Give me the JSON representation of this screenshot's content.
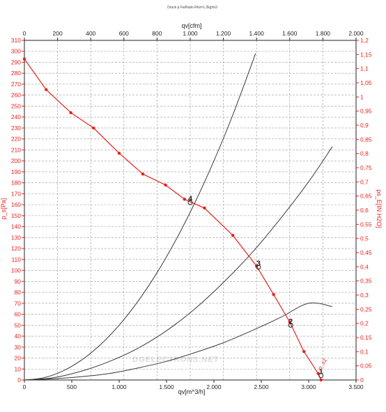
{
  "chart_data": {
    "type": "line",
    "title": "Druck p Fa/Ratio Rho=1.2kg/m3",
    "xlabel": "qv[m^3/h]",
    "x2label": "qv[cfm]",
    "ylabel": "p_s[Pa]",
    "y2label": "ps_E[IN H2O]",
    "xlim": [
      0,
      3500
    ],
    "ylim": [
      0,
      310
    ],
    "x2lim": [
      0,
      2000
    ],
    "y2lim": [
      0,
      1.2
    ],
    "x_ticks": [
      0,
      500,
      1000,
      1500,
      2000,
      2500,
      3000,
      3500
    ],
    "x_tick_labels": [
      "0",
      "500",
      "1.000",
      "1.500",
      "2.000",
      "2.500",
      "3.000",
      "3.500"
    ],
    "x2_ticks": [
      0,
      200,
      400,
      600,
      800,
      1000,
      1200,
      1400,
      1600,
      1800,
      2000
    ],
    "x2_tick_labels": [
      "0",
      "200",
      "400",
      "600",
      "800",
      "1.000",
      "1.200",
      "1.400",
      "1.600",
      "1.800",
      "2.000"
    ],
    "y_ticks": [
      0,
      10,
      20,
      30,
      40,
      50,
      60,
      70,
      80,
      90,
      100,
      110,
      120,
      130,
      140,
      150,
      160,
      170,
      180,
      190,
      200,
      210,
      220,
      230,
      240,
      250,
      260,
      270,
      280,
      290,
      300,
      310
    ],
    "y2_ticks": [
      0,
      0.05,
      0.1,
      0.15,
      0.2,
      0.25,
      0.3,
      0.35,
      0.4,
      0.45,
      0.5,
      0.55,
      0.6,
      0.65,
      0.7,
      0.75,
      0.8,
      0.85,
      0.9,
      0.95,
      1,
      1.05,
      1.1,
      1.15,
      1.2
    ],
    "y2_tick_labels": [
      "0",
      "0,05",
      "0,1",
      "0,15",
      "0,2",
      "0,25",
      "0,3",
      "0,35",
      "0,4",
      "0,45",
      "0,5",
      "0,55",
      "0,6",
      "0,65",
      "0,7",
      "0,75",
      "0,8",
      "0,85",
      "0,9",
      "0,95",
      "1",
      "1,05",
      "1,1",
      "1,15",
      "1,2"
    ],
    "grid": true,
    "series": [
      {
        "name": "p_s1",
        "color": "#e8211c",
        "markers": true,
        "x": [
          0,
          230,
          490,
          730,
          1000,
          1250,
          1490,
          1690,
          1900,
          2200,
          2450,
          2630,
          2800,
          2950,
          3100,
          3130
        ],
        "y": [
          293,
          265,
          244,
          230,
          207,
          188,
          178,
          165,
          157,
          132,
          104,
          78,
          53,
          26,
          6,
          0
        ]
      },
      {
        "name": "",
        "color": "#3a3a3a",
        "markers": false,
        "x": [
          0,
          200,
          400,
          600,
          800,
          1000,
          1200,
          1400,
          1600,
          1800,
          2000,
          2200,
          2440
        ],
        "y": [
          0,
          2,
          8,
          18,
          32,
          50,
          72,
          98,
          128,
          162,
          200,
          242,
          298
        ]
      },
      {
        "name": "",
        "color": "#3a3a3a",
        "markers": false,
        "x": [
          0,
          300,
          600,
          900,
          1200,
          1500,
          1800,
          2100,
          2400,
          2700,
          3000,
          3250
        ],
        "y": [
          0,
          2,
          8,
          17,
          29,
          45,
          65,
          89,
          116,
          147,
          181,
          213
        ]
      },
      {
        "name": "",
        "color": "#3a3a3a",
        "markers": false,
        "x": [
          0,
          300,
          600,
          900,
          1200,
          1500,
          1800,
          2100,
          2400,
          2700,
          3000,
          3250
        ],
        "y": [
          0,
          1,
          3,
          6,
          11,
          17,
          25,
          34,
          45,
          57,
          70,
          67
        ]
      }
    ],
    "operating_points": [
      {
        "label": "4",
        "x": 1750,
        "y": 162
      },
      {
        "label": "3",
        "x": 2470,
        "y": 103
      },
      {
        "label": "2",
        "x": 2810,
        "y": 50
      },
      {
        "label": "1",
        "x": 3130,
        "y": 4
      }
    ],
    "curve_label": "p_s1"
  },
  "watermark": "DGELECTRONS.NET"
}
